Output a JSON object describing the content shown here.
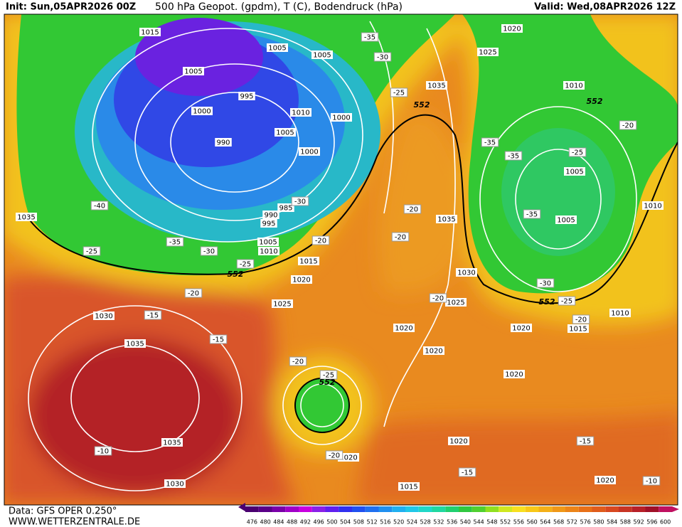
{
  "header": {
    "init": "Init: Sun,05APR2026 00Z",
    "title": "500 hPa Geopot. (gpdm), T (C), Bodendruck (hPa)",
    "valid": "Valid: Wed,08APR2026 12Z"
  },
  "footer": {
    "data_source": "Data: GFS OPER 0.250°",
    "website": "WWW.WETTERZENTRALE.DE"
  },
  "map": {
    "pressure_labels": [
      1015,
      1005,
      1005,
      1005,
      995,
      1000,
      1010,
      1000,
      1005,
      990,
      1000,
      985,
      990,
      995,
      1005,
      1010,
      1015,
      1020,
      1025,
      1035,
      1030,
      1035,
      1035,
      1030,
      1020,
      1025,
      1035,
      1010,
      1005,
      1035,
      1005,
      1010,
      1030,
      1025,
      1020,
      1020,
      1020,
      1015,
      1010,
      1020,
      1020,
      1020,
      1015,
      1020
    ],
    "temperature_labels": [
      -35,
      -30,
      -25,
      -35,
      -35,
      -25,
      -20,
      -40,
      -30,
      -35,
      -30,
      -25,
      -25,
      -20,
      -20,
      -20,
      -35,
      -30,
      -25,
      -20,
      -15,
      -15,
      -20,
      -20,
      -20,
      -25,
      -20,
      -15,
      -15,
      -10,
      -10
    ],
    "height_labels": [
      552,
      552,
      552,
      552,
      552
    ]
  },
  "colorbar": {
    "labels": [
      476,
      480,
      484,
      488,
      492,
      496,
      500,
      504,
      508,
      512,
      516,
      520,
      524,
      528,
      532,
      536,
      540,
      544,
      548,
      552,
      556,
      560,
      564,
      568,
      572,
      576,
      580,
      584,
      588,
      592,
      596,
      600
    ]
  }
}
